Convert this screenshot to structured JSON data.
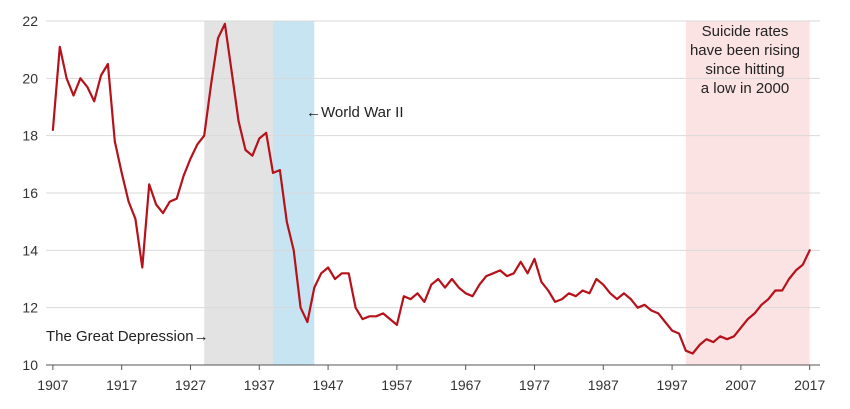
{
  "chart_data": {
    "type": "line",
    "title": "",
    "xlabel": "",
    "ylabel": "",
    "xlim": [
      1906,
      2018.5
    ],
    "ylim": [
      10,
      22
    ],
    "xticks": [
      1907,
      1917,
      1927,
      1937,
      1947,
      1957,
      1967,
      1977,
      1987,
      1997,
      2007,
      2017
    ],
    "xtick_labels": [
      "1907",
      "1917",
      "1927",
      "1937",
      "1947",
      "1957",
      "1967",
      "1977",
      "1987",
      "1997",
      "2007",
      "2017"
    ],
    "yticks": [
      10,
      12,
      14,
      16,
      18,
      20,
      22
    ],
    "ytick_labels": [
      "10",
      "12",
      "14",
      "16",
      "18",
      "20",
      "22"
    ],
    "grid": true,
    "series": [
      {
        "color": "#b5121b",
        "x": [
          1907,
          1908,
          1909,
          1910,
          1911,
          1912,
          1913,
          1914,
          1915,
          1916,
          1917,
          1918,
          1919,
          1920,
          1921,
          1922,
          1923,
          1924,
          1925,
          1926,
          1927,
          1928,
          1929,
          1930,
          1931,
          1932,
          1933,
          1934,
          1935,
          1936,
          1937,
          1938,
          1939,
          1940,
          1941,
          1942,
          1943,
          1944,
          1945,
          1946,
          1947,
          1948,
          1949,
          1950,
          1951,
          1952,
          1953,
          1954,
          1955,
          1956,
          1957,
          1958,
          1959,
          1960,
          1961,
          1962,
          1963,
          1964,
          1965,
          1966,
          1967,
          1968,
          1969,
          1970,
          1971,
          1972,
          1973,
          1974,
          1975,
          1976,
          1977,
          1978,
          1979,
          1980,
          1981,
          1982,
          1983,
          1984,
          1985,
          1986,
          1987,
          1988,
          1989,
          1990,
          1991,
          1992,
          1993,
          1994,
          1995,
          1996,
          1997,
          1998,
          1999,
          2000,
          2001,
          2002,
          2003,
          2004,
          2005,
          2006,
          2007,
          2008,
          2009,
          2010,
          2011,
          2012,
          2013,
          2014,
          2015,
          2016,
          2017
        ],
        "y": [
          18.2,
          21.1,
          20.0,
          19.4,
          20.0,
          19.7,
          19.2,
          20.1,
          20.5,
          17.8,
          16.7,
          15.7,
          15.1,
          13.4,
          16.3,
          15.6,
          15.3,
          15.7,
          15.8,
          16.6,
          17.2,
          17.7,
          18.0,
          19.8,
          21.4,
          21.9,
          20.2,
          18.5,
          17.5,
          17.3,
          17.9,
          18.1,
          16.7,
          16.8,
          15.0,
          14.0,
          12.0,
          11.5,
          12.7,
          13.2,
          13.4,
          13.0,
          13.2,
          13.2,
          12.0,
          11.6,
          11.7,
          11.7,
          11.8,
          11.6,
          11.4,
          12.4,
          12.3,
          12.5,
          12.2,
          12.8,
          13.0,
          12.7,
          13.0,
          12.7,
          12.5,
          12.4,
          12.8,
          13.1,
          13.2,
          13.3,
          13.1,
          13.2,
          13.6,
          13.2,
          13.7,
          12.9,
          12.6,
          12.2,
          12.3,
          12.5,
          12.4,
          12.6,
          12.5,
          13.0,
          12.8,
          12.5,
          12.3,
          12.5,
          12.3,
          12.0,
          12.1,
          11.9,
          11.8,
          11.5,
          11.2,
          11.1,
          10.5,
          10.4,
          10.7,
          10.9,
          10.8,
          11.0,
          10.9,
          11.0,
          11.3,
          11.6,
          11.8,
          12.1,
          12.3,
          12.6,
          12.6,
          13.0,
          13.3,
          13.5,
          14.0
        ]
      }
    ],
    "shaded_regions": [
      {
        "start": 1929,
        "end": 1939,
        "color": "#e3e3e3"
      },
      {
        "start": 1939,
        "end": 1945,
        "color": "#c7e4f3"
      },
      {
        "start": 1999,
        "end": 2017,
        "color": "#fbe3e4"
      }
    ],
    "annotations": {
      "depression": "The Great Depression→",
      "ww2": "←World War II",
      "rising": [
        "Suicide rates",
        "have been rising",
        "since hitting",
        "a low in 2000"
      ]
    }
  }
}
